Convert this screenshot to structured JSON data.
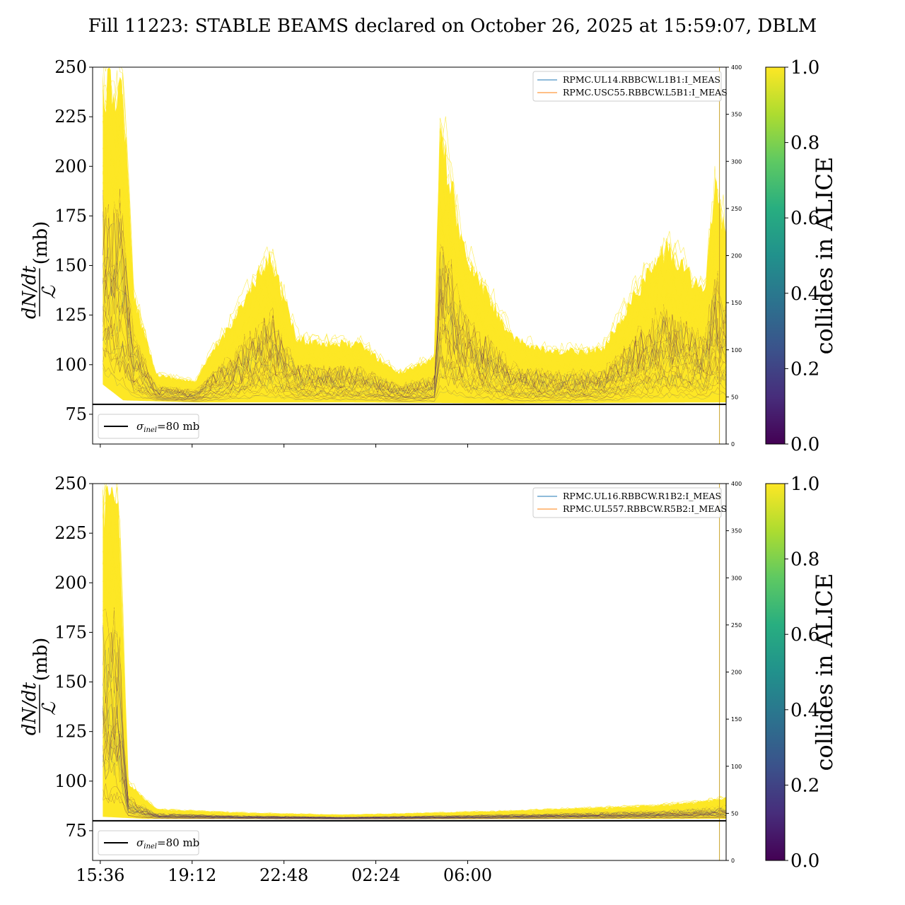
{
  "chart_data": [
    {
      "type": "line",
      "panel": "top",
      "title": "Fill 11223: STABLE BEAMS declared on October 26, 2025 at 15:59:07, DBLM",
      "ylabel": "dN/dt / ℒ (mb)",
      "ylabel_num": "dN/dt",
      "ylabel_den": "ℒ",
      "ylabel_unit": "(mb)",
      "ylim": [
        60,
        250
      ],
      "yticks": [
        "75",
        "100",
        "125",
        "150",
        "175",
        "200",
        "225",
        "250"
      ],
      "y2lim": [
        0,
        400
      ],
      "y2ticks": [
        "0",
        "50",
        "100",
        "150",
        "200",
        "250",
        "300",
        "350",
        "400"
      ],
      "xlim_hours": [
        0.0,
        24.83
      ],
      "xtick_labels": [
        "15:36",
        "19:12",
        "22:48",
        "02:24",
        "06:00"
      ],
      "show_xtick_labels": false,
      "legend_entries": [
        {
          "label": "RPMC.UL14.RBBCW.L1B1:I_MEAS",
          "color": "#1f77b4"
        },
        {
          "label": "RPMC.USC55.RBBCW.L5B1:I_MEAS",
          "color": "#ff7f0e"
        }
      ],
      "hline": {
        "value": 80,
        "label_sym": "σ",
        "label_sub": "inel",
        "label_rest": "=80 mb"
      },
      "envelope_upper_approx": [
        [
          0.4,
          250
        ],
        [
          1.2,
          250
        ],
        [
          1.6,
          140
        ],
        [
          2.5,
          96
        ],
        [
          4.0,
          92
        ],
        [
          7.0,
          160
        ],
        [
          8.0,
          115
        ],
        [
          10.5,
          112
        ],
        [
          12.0,
          97
        ],
        [
          13.4,
          105
        ],
        [
          13.6,
          230
        ],
        [
          14.6,
          160
        ],
        [
          16.5,
          115
        ],
        [
          18.0,
          108
        ],
        [
          20.0,
          110
        ],
        [
          21.5,
          145
        ],
        [
          22.5,
          165
        ],
        [
          24.0,
          140
        ],
        [
          24.4,
          200
        ],
        [
          24.83,
          170
        ]
      ],
      "envelope_lower_approx": [
        [
          0.4,
          90
        ],
        [
          1.2,
          82
        ],
        [
          4.0,
          81
        ],
        [
          10.0,
          81
        ],
        [
          16.0,
          80.5
        ],
        [
          24.83,
          81
        ]
      ],
      "colorbar": {
        "label": "collides in ALICE",
        "range": [
          0.0,
          1.0
        ],
        "ticks": [
          "0.0",
          "0.2",
          "0.4",
          "0.6",
          "0.8",
          "1.0"
        ]
      }
    },
    {
      "type": "line",
      "panel": "bottom",
      "ylabel": "dN/dt / ℒ (mb)",
      "ylabel_num": "dN/dt",
      "ylabel_den": "ℒ",
      "ylabel_unit": "(mb)",
      "ylim": [
        60,
        250
      ],
      "yticks": [
        "75",
        "100",
        "125",
        "150",
        "175",
        "200",
        "225",
        "250"
      ],
      "y2lim": [
        0,
        400
      ],
      "y2ticks": [
        "0",
        "50",
        "100",
        "150",
        "200",
        "250",
        "300",
        "350",
        "400"
      ],
      "xlim_hours": [
        0.0,
        24.83
      ],
      "xtick_labels": [
        "15:36",
        "19:12",
        "22:48",
        "02:24",
        "06:00"
      ],
      "show_xtick_labels": true,
      "legend_entries": [
        {
          "label": "RPMC.UL16.RBBCW.R1B2:I_MEAS",
          "color": "#1f77b4"
        },
        {
          "label": "RPMC.UL557.RBBCW.R5B2:I_MEAS",
          "color": "#ff7f0e"
        }
      ],
      "hline": {
        "value": 80,
        "label_sym": "σ",
        "label_sub": "inel",
        "label_rest": "=80 mb"
      },
      "envelope_upper_approx": [
        [
          0.4,
          250
        ],
        [
          1.0,
          250
        ],
        [
          1.4,
          100
        ],
        [
          2.5,
          86
        ],
        [
          6.0,
          84
        ],
        [
          10.0,
          83
        ],
        [
          16.0,
          85
        ],
        [
          22.0,
          88
        ],
        [
          23.8,
          90
        ],
        [
          24.83,
          92
        ]
      ],
      "envelope_lower_approx": [
        [
          0.4,
          82
        ],
        [
          2.0,
          81
        ],
        [
          10.0,
          80.8
        ],
        [
          24.83,
          81
        ]
      ],
      "colorbar": {
        "label": "collides in ALICE",
        "range": [
          0.0,
          1.0
        ],
        "ticks": [
          "0.0",
          "0.2",
          "0.4",
          "0.6",
          "0.8",
          "1.0"
        ]
      }
    }
  ],
  "colors": {
    "yellow": "#fde725",
    "dark": "#440154",
    "purple": "#3b528b",
    "accent_line": "#c9a227"
  }
}
